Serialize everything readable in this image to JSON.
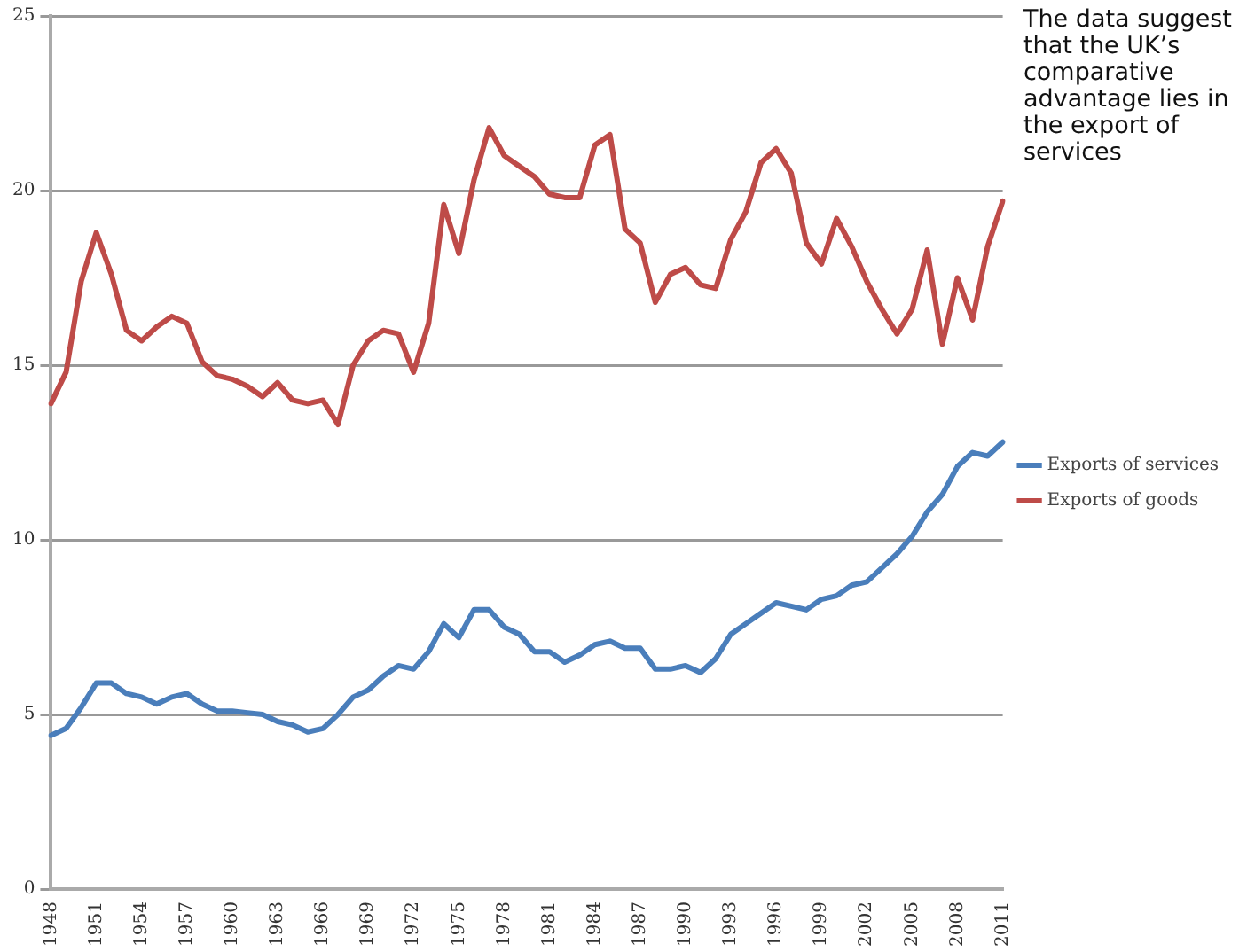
{
  "chart_data": {
    "type": "line",
    "categories": [
      "1948",
      null,
      null,
      "1951",
      null,
      null,
      "1954",
      null,
      null,
      "1957",
      null,
      null,
      "1960",
      null,
      null,
      "1963",
      null,
      null,
      "1966",
      null,
      null,
      "1969",
      null,
      null,
      "1972",
      null,
      null,
      "1975",
      null,
      null,
      "1978",
      null,
      null,
      "1981",
      null,
      null,
      "1984",
      null,
      null,
      "1987",
      null,
      null,
      "1990",
      null,
      null,
      "1993",
      null,
      null,
      "1996",
      null,
      null,
      "1999",
      null,
      null,
      "2002",
      null,
      null,
      "2005",
      null,
      null,
      "2008",
      null,
      null,
      "2011"
    ],
    "series": [
      {
        "name": "Exports of services",
        "color": "#4a7ebb",
        "values": [
          4.4,
          4.6,
          5.2,
          5.9,
          5.9,
          5.6,
          5.5,
          5.3,
          5.5,
          5.6,
          5.3,
          5.1,
          5.1,
          5.05,
          5.0,
          4.8,
          4.7,
          4.5,
          4.6,
          5.0,
          5.5,
          5.7,
          6.1,
          6.4,
          6.3,
          6.8,
          7.6,
          7.2,
          8.0,
          8.0,
          7.5,
          7.3,
          6.8,
          6.8,
          6.5,
          6.7,
          7.0,
          7.1,
          6.9,
          6.9,
          6.3,
          6.3,
          6.4,
          6.2,
          6.6,
          7.3,
          7.6,
          7.9,
          8.2,
          8.1,
          8.0,
          8.3,
          8.4,
          8.7,
          8.8,
          9.2,
          9.6,
          10.1,
          10.8,
          11.3,
          12.1,
          12.5,
          12.4,
          12.8
        ]
      },
      {
        "name": "Exports of goods",
        "color": "#be4b48",
        "values": [
          13.9,
          14.8,
          17.4,
          18.8,
          17.6,
          16.0,
          15.7,
          16.1,
          16.4,
          16.2,
          15.1,
          14.7,
          14.6,
          14.4,
          14.1,
          14.5,
          14.0,
          13.9,
          14.0,
          13.3,
          15.0,
          15.7,
          16.0,
          15.9,
          14.8,
          16.2,
          19.6,
          18.2,
          20.3,
          21.8,
          21.0,
          20.7,
          20.4,
          19.9,
          19.8,
          19.8,
          21.3,
          21.6,
          18.9,
          18.5,
          16.8,
          17.6,
          17.8,
          17.3,
          17.2,
          18.6,
          19.4,
          20.8,
          21.2,
          20.5,
          18.5,
          17.9,
          19.2,
          18.4,
          17.4,
          16.6,
          15.9,
          16.6,
          18.3,
          15.6,
          17.5,
          16.3,
          18.4,
          19.7
        ]
      }
    ],
    "ylim": [
      0,
      25
    ],
    "yticks": [
      0,
      5,
      10,
      15,
      20,
      25
    ],
    "grid": "y",
    "legend": "right",
    "marker": "none",
    "line_style": "solid",
    "annotations": [
      "The data suggest that the UK’s comparative advantage lies in the export of services"
    ]
  }
}
